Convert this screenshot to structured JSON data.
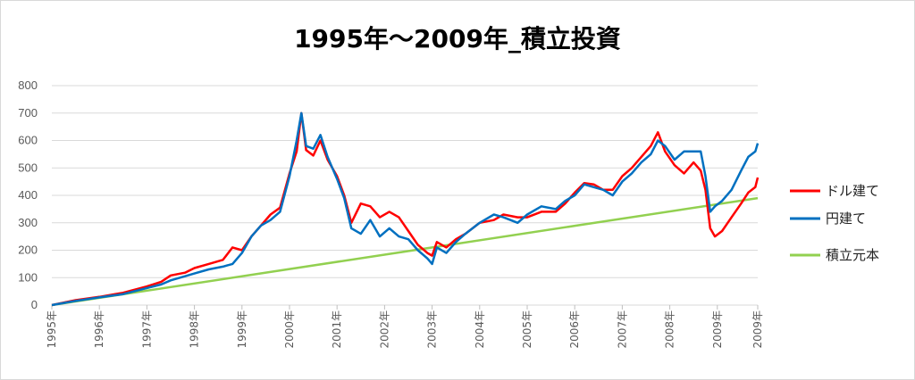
{
  "chart_data": {
    "type": "line",
    "title": "1995年～2009年_積立投資",
    "xlabel": "",
    "ylabel": "",
    "ylim": [
      0,
      800
    ],
    "yticks": [
      0,
      100,
      200,
      300,
      400,
      500,
      600,
      700,
      800
    ],
    "xlim": [
      1995,
      2009.85
    ],
    "x_tick_labels": [
      "1995年",
      "1996年",
      "1997年",
      "1998年",
      "1999年",
      "2000年",
      "2001年",
      "2002年",
      "2003年",
      "2004年",
      "2005年",
      "2006年",
      "2007年",
      "2008年",
      "2009年",
      "2009年"
    ],
    "x_tick_positions": [
      1995,
      1996,
      1997,
      1998,
      1999,
      2000,
      2001,
      2002,
      2003,
      2004,
      2005,
      2006,
      2007,
      2008,
      2009,
      2009.85
    ],
    "grid": true,
    "legend_position": "right",
    "series": [
      {
        "name": "ドル建て",
        "color": "#ff0000",
        "points": [
          [
            1995,
            0
          ],
          [
            1995.5,
            18
          ],
          [
            1996,
            30
          ],
          [
            1996.5,
            45
          ],
          [
            1997,
            68
          ],
          [
            1997.3,
            85
          ],
          [
            1997.5,
            108
          ],
          [
            1997.8,
            118
          ],
          [
            1998,
            135
          ],
          [
            1998.3,
            150
          ],
          [
            1998.6,
            165
          ],
          [
            1998.8,
            210
          ],
          [
            1999,
            200
          ],
          [
            1999.2,
            250
          ],
          [
            1999.4,
            290
          ],
          [
            1999.6,
            330
          ],
          [
            1999.8,
            355
          ],
          [
            2000,
            480
          ],
          [
            2000.15,
            560
          ],
          [
            2000.25,
            700
          ],
          [
            2000.35,
            565
          ],
          [
            2000.5,
            545
          ],
          [
            2000.65,
            600
          ],
          [
            2000.8,
            530
          ],
          [
            2001,
            470
          ],
          [
            2001.15,
            400
          ],
          [
            2001.3,
            300
          ],
          [
            2001.5,
            370
          ],
          [
            2001.7,
            360
          ],
          [
            2001.9,
            320
          ],
          [
            2002.1,
            340
          ],
          [
            2002.3,
            320
          ],
          [
            2002.5,
            270
          ],
          [
            2002.7,
            220
          ],
          [
            2002.9,
            190
          ],
          [
            2003,
            180
          ],
          [
            2003.1,
            230
          ],
          [
            2003.3,
            210
          ],
          [
            2003.5,
            240
          ],
          [
            2003.7,
            260
          ],
          [
            2004,
            300
          ],
          [
            2004.3,
            310
          ],
          [
            2004.5,
            330
          ],
          [
            2004.8,
            320
          ],
          [
            2005,
            320
          ],
          [
            2005.3,
            340
          ],
          [
            2005.6,
            340
          ],
          [
            2005.8,
            370
          ],
          [
            2006,
            410
          ],
          [
            2006.2,
            445
          ],
          [
            2006.4,
            440
          ],
          [
            2006.6,
            420
          ],
          [
            2006.8,
            420
          ],
          [
            2007,
            470
          ],
          [
            2007.2,
            500
          ],
          [
            2007.4,
            540
          ],
          [
            2007.6,
            580
          ],
          [
            2007.75,
            630
          ],
          [
            2007.9,
            560
          ],
          [
            2008.1,
            510
          ],
          [
            2008.3,
            480
          ],
          [
            2008.5,
            520
          ],
          [
            2008.65,
            490
          ],
          [
            2008.75,
            420
          ],
          [
            2008.85,
            280
          ],
          [
            2008.95,
            250
          ],
          [
            2009.1,
            270
          ],
          [
            2009.3,
            320
          ],
          [
            2009.5,
            370
          ],
          [
            2009.65,
            410
          ],
          [
            2009.8,
            430
          ],
          [
            2009.85,
            465
          ]
        ]
      },
      {
        "name": "円建て",
        "color": "#0070c0",
        "points": [
          [
            1995,
            0
          ],
          [
            1995.5,
            15
          ],
          [
            1996,
            28
          ],
          [
            1996.5,
            40
          ],
          [
            1997,
            62
          ],
          [
            1997.3,
            75
          ],
          [
            1997.5,
            90
          ],
          [
            1997.8,
            105
          ],
          [
            1998,
            115
          ],
          [
            1998.3,
            130
          ],
          [
            1998.6,
            140
          ],
          [
            1998.8,
            150
          ],
          [
            1999,
            190
          ],
          [
            1999.2,
            250
          ],
          [
            1999.4,
            290
          ],
          [
            1999.6,
            310
          ],
          [
            1999.8,
            340
          ],
          [
            2000,
            470
          ],
          [
            2000.15,
            600
          ],
          [
            2000.25,
            700
          ],
          [
            2000.35,
            580
          ],
          [
            2000.5,
            570
          ],
          [
            2000.65,
            620
          ],
          [
            2000.8,
            540
          ],
          [
            2001,
            460
          ],
          [
            2001.15,
            390
          ],
          [
            2001.3,
            280
          ],
          [
            2001.5,
            260
          ],
          [
            2001.7,
            310
          ],
          [
            2001.9,
            250
          ],
          [
            2002.1,
            280
          ],
          [
            2002.3,
            250
          ],
          [
            2002.5,
            240
          ],
          [
            2002.7,
            200
          ],
          [
            2002.9,
            170
          ],
          [
            2003,
            150
          ],
          [
            2003.1,
            210
          ],
          [
            2003.3,
            190
          ],
          [
            2003.5,
            230
          ],
          [
            2003.7,
            260
          ],
          [
            2004,
            300
          ],
          [
            2004.3,
            330
          ],
          [
            2004.5,
            320
          ],
          [
            2004.8,
            300
          ],
          [
            2005,
            330
          ],
          [
            2005.3,
            360
          ],
          [
            2005.6,
            350
          ],
          [
            2005.8,
            380
          ],
          [
            2006,
            400
          ],
          [
            2006.2,
            440
          ],
          [
            2006.4,
            430
          ],
          [
            2006.6,
            420
          ],
          [
            2006.8,
            400
          ],
          [
            2007,
            450
          ],
          [
            2007.2,
            480
          ],
          [
            2007.4,
            520
          ],
          [
            2007.6,
            550
          ],
          [
            2007.75,
            600
          ],
          [
            2007.9,
            580
          ],
          [
            2008.1,
            530
          ],
          [
            2008.3,
            560
          ],
          [
            2008.5,
            560
          ],
          [
            2008.65,
            560
          ],
          [
            2008.75,
            470
          ],
          [
            2008.85,
            340
          ],
          [
            2008.95,
            360
          ],
          [
            2009.1,
            380
          ],
          [
            2009.3,
            420
          ],
          [
            2009.5,
            490
          ],
          [
            2009.65,
            540
          ],
          [
            2009.8,
            560
          ],
          [
            2009.85,
            590
          ]
        ]
      },
      {
        "name": "積立元本",
        "color": "#92d050",
        "points": [
          [
            1995,
            0
          ],
          [
            2009.85,
            390
          ]
        ]
      }
    ]
  }
}
